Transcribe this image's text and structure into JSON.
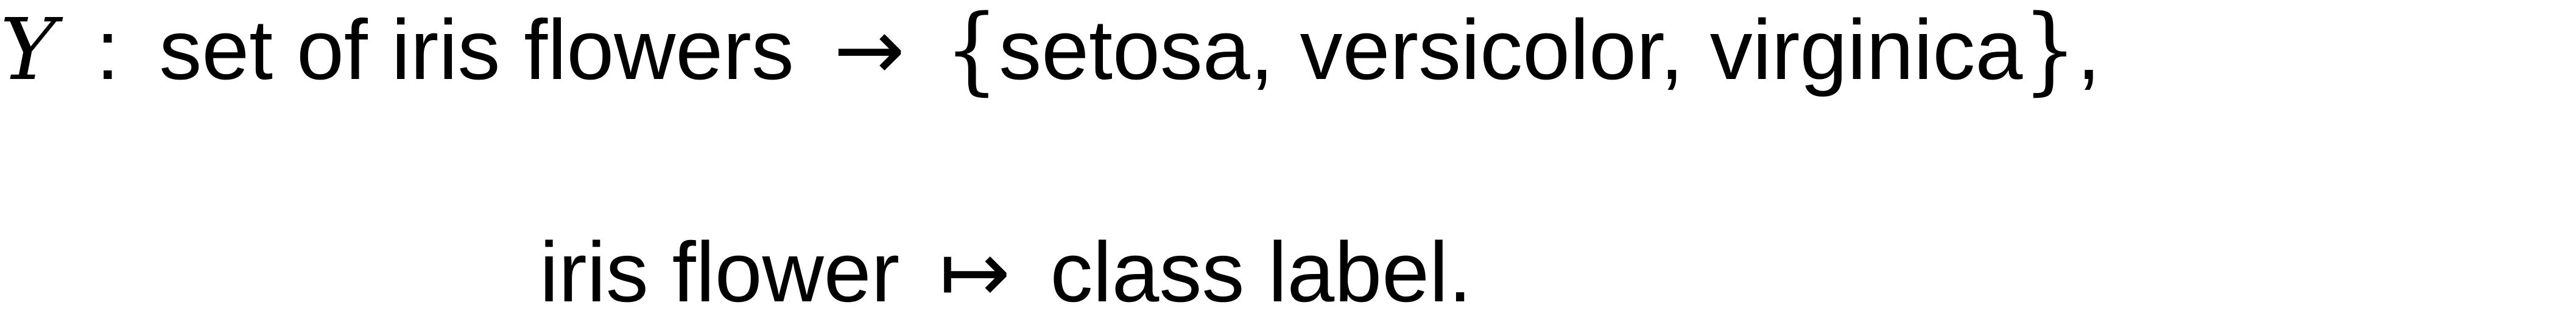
{
  "line1": {
    "variable": "Y",
    "colon": ":",
    "domain_text": "set of iris flowers",
    "arrow": "→",
    "open_brace": "{",
    "class_1": "setosa",
    "comma_1": ",",
    "class_2": "versicolor",
    "comma_2": ",",
    "class_3": "virginica",
    "close_brace": "}",
    "trailing_comma": ","
  },
  "line2": {
    "input_text": "iris flower",
    "mapsto": "↦",
    "output_text": "class label",
    "period": "."
  }
}
